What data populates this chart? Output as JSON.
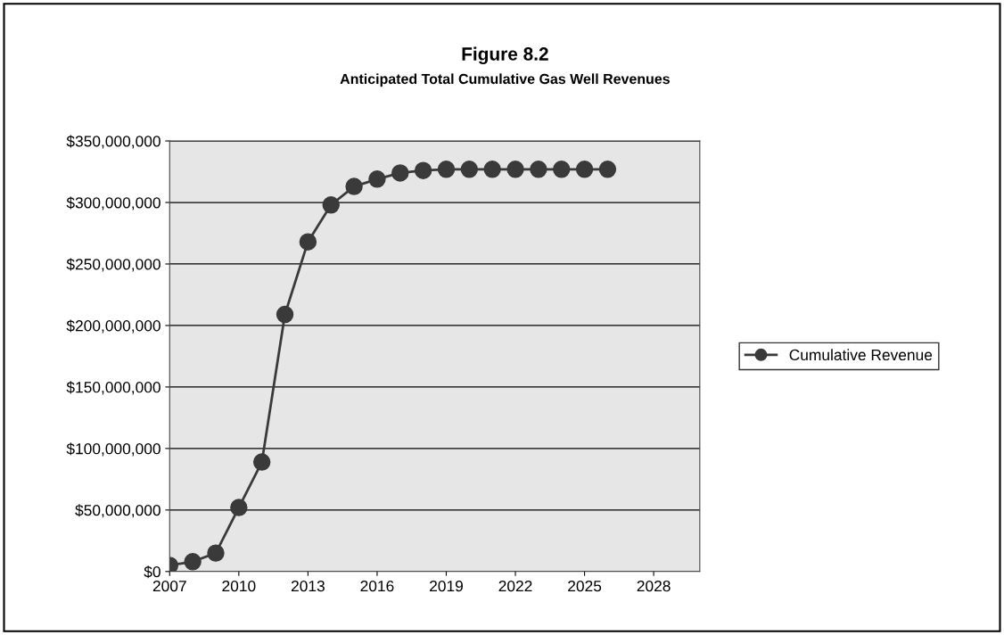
{
  "chart_data": {
    "type": "line",
    "title": "Figure 8.2",
    "subtitle": "Anticipated Total Cumulative Gas Well Revenues",
    "x": [
      2007,
      2008,
      2009,
      2010,
      2011,
      2012,
      2013,
      2014,
      2015,
      2016,
      2017,
      2018,
      2019,
      2020,
      2021,
      2022,
      2023,
      2024,
      2025,
      2026
    ],
    "series": [
      {
        "name": "Cumulative Revenue",
        "color": "#3a3a3a",
        "values": [
          5000000,
          8000000,
          15000000,
          52000000,
          89000000,
          209000000,
          268000000,
          298000000,
          313000000,
          319000000,
          324000000,
          326000000,
          327000000,
          327000000,
          327000000,
          327000000,
          327000000,
          327000000,
          327000000,
          327000000
        ]
      }
    ],
    "xlim": [
      2007,
      2030
    ],
    "xticks": [
      2007,
      2010,
      2013,
      2016,
      2019,
      2022,
      2025,
      2028
    ],
    "ylim": [
      0,
      350000000
    ],
    "yticks": [
      {
        "value": 0,
        "label": "$0"
      },
      {
        "value": 50000000,
        "label": "$50,000,000"
      },
      {
        "value": 100000000,
        "label": "$100,000,000"
      },
      {
        "value": 150000000,
        "label": "$150,000,000"
      },
      {
        "value": 200000000,
        "label": "$200,000,000"
      },
      {
        "value": 250000000,
        "label": "$250,000,000"
      },
      {
        "value": 300000000,
        "label": "$300,000,000"
      },
      {
        "value": 350000000,
        "label": "$350,000,000"
      }
    ],
    "grid": "y",
    "legend": "right",
    "marker": "circle",
    "line_style": "solid"
  }
}
